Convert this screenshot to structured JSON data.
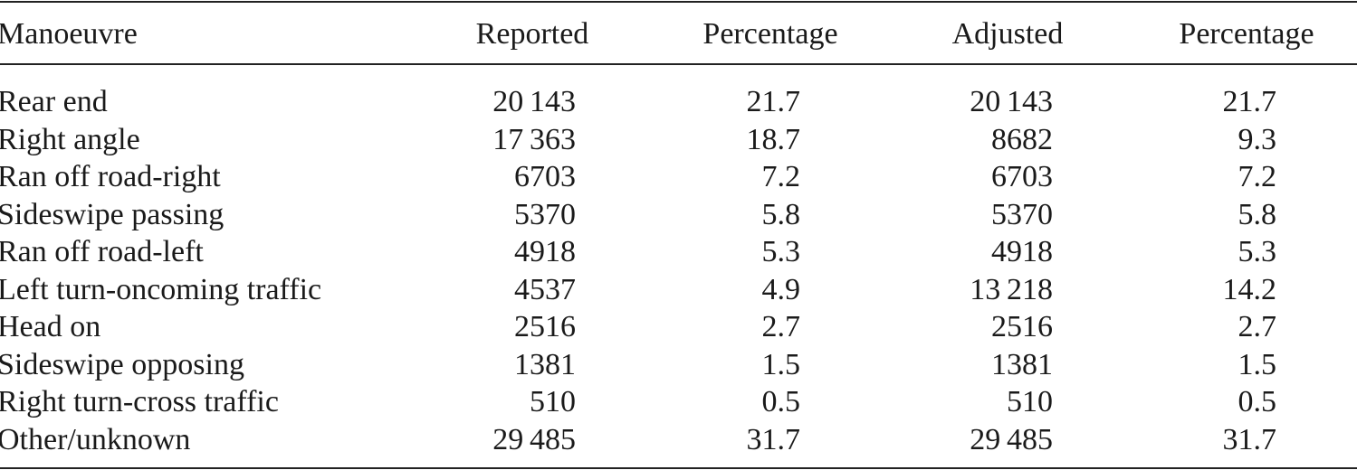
{
  "table": {
    "header": [
      "Manoeuvre",
      "Reported",
      "Percentage",
      "Adjusted",
      "Percentage"
    ],
    "rows": [
      [
        "Rear end",
        "20 143",
        "21.7",
        "20 143",
        "21.7"
      ],
      [
        "Right angle",
        "17 363",
        "18.7",
        "8682",
        "9.3"
      ],
      [
        "Ran off road-right",
        "6703",
        "7.2",
        "6703",
        "7.2"
      ],
      [
        "Sideswipe passing",
        "5370",
        "5.8",
        "5370",
        "5.8"
      ],
      [
        "Ran off road-left",
        "4918",
        "5.3",
        "4918",
        "5.3"
      ],
      [
        "Left turn-oncoming traffic",
        "4537",
        "4.9",
        "13 218",
        "14.2"
      ],
      [
        "Head on",
        "2516",
        "2.7",
        "2516",
        "2.7"
      ],
      [
        "Sideswipe opposing",
        "1381",
        "1.5",
        "1381",
        "1.5"
      ],
      [
        "Right turn-cross traffic",
        "510",
        "0.5",
        "510",
        "0.5"
      ],
      [
        "Other/unknown",
        "29 485",
        "31.7",
        "29 485",
        "31.7"
      ]
    ]
  }
}
